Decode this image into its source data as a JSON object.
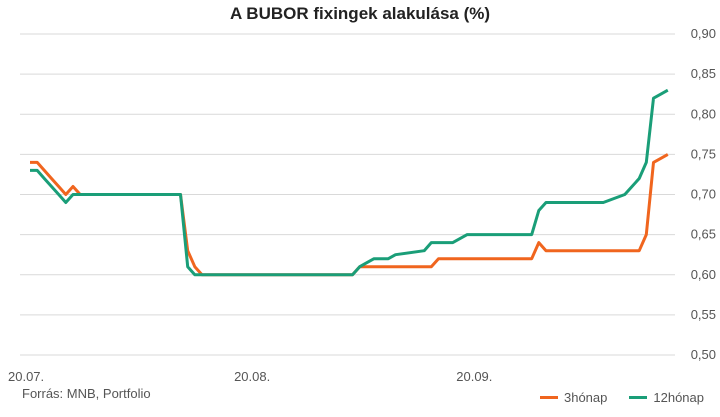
{
  "chart_data": {
    "type": "line",
    "title": "A BUBOR fixingek alakulása (%)",
    "source": "Forrás: MNB, Portfolio",
    "x_ticks": [
      "20.07.",
      "20.08.",
      "20.09."
    ],
    "y_ticks": [
      "0,50",
      "0,55",
      "0,60",
      "0,65",
      "0,70",
      "0,75",
      "0,80",
      "0,85",
      "0,90"
    ],
    "ylim": [
      0.5,
      0.9
    ],
    "grid": true,
    "legend_position": "bottom-right",
    "x_range": [
      0,
      90
    ],
    "x_tick_positions": [
      0,
      31,
      62
    ],
    "series": [
      {
        "name": "3hónap",
        "color": "#f0651e",
        "x": [
          0,
          1,
          2,
          3,
          4,
          5,
          6,
          7,
          8,
          9,
          10,
          11,
          21,
          22,
          23,
          24,
          25,
          30,
          40,
          41,
          45,
          46,
          50,
          51,
          56,
          57,
          60,
          61,
          65,
          66,
          70,
          71,
          72,
          80,
          85,
          86,
          87,
          88,
          89
        ],
        "values": [
          0.74,
          0.74,
          0.73,
          0.72,
          0.71,
          0.7,
          0.71,
          0.7,
          0.7,
          0.7,
          0.7,
          0.7,
          0.7,
          0.63,
          0.61,
          0.6,
          0.6,
          0.6,
          0.6,
          0.6,
          0.6,
          0.61,
          0.61,
          0.61,
          0.61,
          0.62,
          0.62,
          0.62,
          0.62,
          0.62,
          0.62,
          0.64,
          0.63,
          0.63,
          0.63,
          0.65,
          0.74,
          0.745,
          0.75
        ]
      },
      {
        "name": "12hónap",
        "color": "#1a9e78",
        "x": [
          0,
          1,
          2,
          3,
          4,
          5,
          6,
          7,
          8,
          9,
          10,
          11,
          21,
          22,
          23,
          24,
          25,
          30,
          40,
          45,
          46,
          47,
          48,
          49,
          50,
          51,
          55,
          56,
          58,
          59,
          60,
          61,
          62,
          65,
          66,
          70,
          71,
          72,
          73,
          80,
          83,
          85,
          86,
          87,
          88,
          89
        ],
        "values": [
          0.73,
          0.73,
          0.72,
          0.71,
          0.7,
          0.69,
          0.7,
          0.7,
          0.7,
          0.7,
          0.7,
          0.7,
          0.7,
          0.61,
          0.6,
          0.6,
          0.6,
          0.6,
          0.6,
          0.6,
          0.61,
          0.615,
          0.62,
          0.62,
          0.62,
          0.625,
          0.63,
          0.64,
          0.64,
          0.64,
          0.645,
          0.65,
          0.65,
          0.65,
          0.65,
          0.65,
          0.68,
          0.69,
          0.69,
          0.69,
          0.7,
          0.72,
          0.74,
          0.82,
          0.825,
          0.83
        ]
      }
    ]
  }
}
